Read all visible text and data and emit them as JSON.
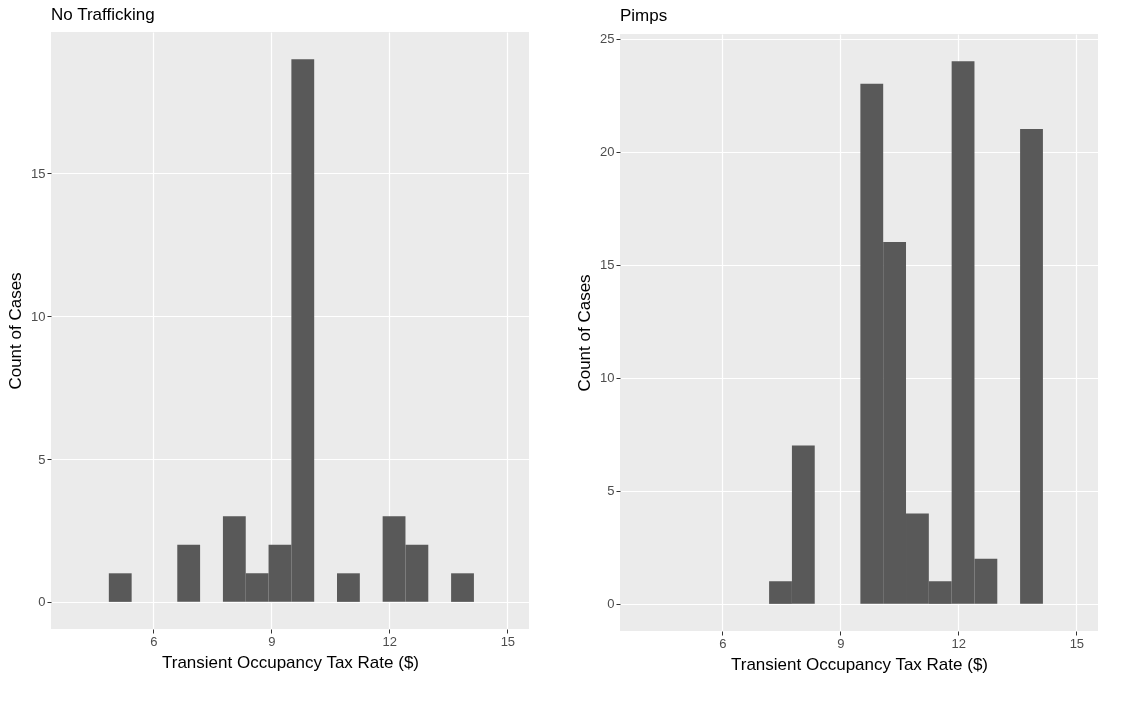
{
  "chart_data": [
    {
      "type": "histogram",
      "title": "No Trafficking",
      "xlabel": "Transient Occupancy Tax Rate ($)",
      "ylabel": "Count of Cases",
      "bins": [
        4.87,
        5.45,
        6.03,
        6.61,
        7.19,
        7.77,
        8.35,
        8.93,
        9.51,
        10.09,
        10.67,
        11.25,
        11.83,
        12.41,
        12.99,
        13.57,
        14.15
      ],
      "values": [
        1,
        0,
        0,
        2,
        0,
        3,
        1,
        2,
        19,
        0,
        1,
        0,
        3,
        2,
        0,
        1
      ],
      "color": "#595959",
      "xlim": [
        3.4,
        15.55
      ],
      "ylim": [
        -0.95,
        19.95
      ],
      "xticks": [
        6,
        9,
        12,
        15
      ],
      "yticks": [
        0,
        5,
        10,
        15
      ],
      "grid": true
    },
    {
      "type": "histogram",
      "title": "Pimps",
      "xlabel": "Transient Occupancy Tax Rate ($)",
      "ylabel": "Count of Cases",
      "bins": [
        4.87,
        5.45,
        6.03,
        6.61,
        7.19,
        7.77,
        8.35,
        8.93,
        9.51,
        10.09,
        10.67,
        11.25,
        11.83,
        12.41,
        12.99,
        13.57,
        14.15
      ],
      "values": [
        0,
        0,
        0,
        0,
        1,
        7,
        0,
        0,
        23,
        16,
        4,
        1,
        24,
        2,
        0,
        21
      ],
      "color": "#595959",
      "xlim": [
        3.4,
        15.55
      ],
      "ylim": [
        -1.2,
        25.2
      ],
      "xticks": [
        6,
        9,
        12,
        15
      ],
      "yticks": [
        0,
        5,
        10,
        15,
        20,
        25
      ],
      "grid": true
    }
  ]
}
